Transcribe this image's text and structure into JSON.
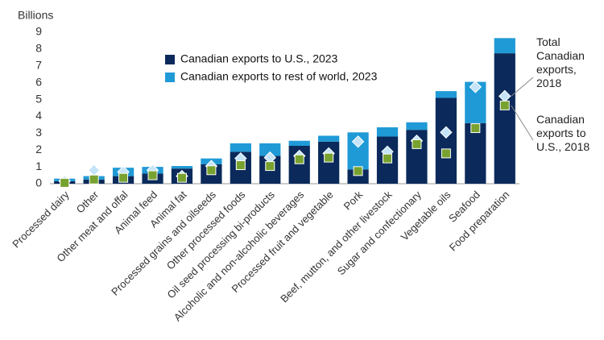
{
  "chart_data": {
    "type": "bar",
    "stacked": true,
    "y_label": "Billions",
    "categories": [
      "Processed dairy",
      "Other",
      "Other meat and offal",
      "Animal feed",
      "Animal fat",
      "Processed grains and oilseeds",
      "Other processed foods",
      "Oil seed processing bi-products",
      "Alcoholic and non-alcoholic beverages",
      "Processed fruit and vegetable",
      "Pork",
      "Beef, mutton, and other livestock",
      "Sugar and confectionary",
      "Vegetable oils",
      "Seafood",
      "Food preparation"
    ],
    "series": [
      {
        "name": "Canadian exports to U.S., 2023",
        "kind": "bar",
        "color": "#0b2a5b",
        "values": [
          0.15,
          0.25,
          0.45,
          0.6,
          0.9,
          1.15,
          1.9,
          1.65,
          2.25,
          2.5,
          0.85,
          2.8,
          3.2,
          5.1,
          3.6,
          7.75
        ]
      },
      {
        "name": "Canadian exports to rest of world, 2023",
        "kind": "bar",
        "color": "#1f9ad6",
        "values": [
          0.15,
          0.2,
          0.5,
          0.4,
          0.15,
          0.35,
          0.5,
          0.75,
          0.3,
          0.35,
          2.2,
          0.55,
          0.45,
          0.4,
          2.45,
          0.9
        ]
      },
      {
        "name": "Total Canadian exports, 2018",
        "kind": "marker",
        "marker": "diamond",
        "color": "#c6e4f7",
        "values": [
          0.15,
          0.8,
          0.7,
          0.8,
          0.45,
          1.05,
          1.5,
          1.55,
          1.65,
          1.8,
          2.5,
          1.9,
          2.55,
          3.05,
          5.75,
          5.2
        ]
      },
      {
        "name": "Canadian exports to U.S., 2018",
        "kind": "marker",
        "marker": "square",
        "color": "#78a22f",
        "values": [
          0.05,
          0.25,
          0.35,
          0.5,
          0.35,
          0.8,
          1.1,
          1.05,
          1.45,
          1.55,
          0.75,
          1.5,
          2.35,
          1.8,
          3.3,
          4.65
        ]
      }
    ],
    "ylim": [
      0,
      9
    ],
    "yticks": [
      0,
      1,
      2,
      3,
      4,
      5,
      6,
      7,
      8,
      9
    ],
    "grid": false
  }
}
